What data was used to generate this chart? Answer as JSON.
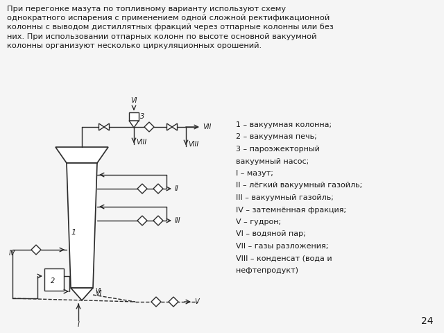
{
  "title_text": "При перегонке мазута по топливному варианту используют схему\nоднократного испарения с применением одной сложной ректификационной\nколонны с выводом дистиллятных фракций через отпарные колонны или без\nних. При использовании отпарных колонн по высоте основной вакуумной\nколонны организуют несколько циркуляционных орошений.",
  "legend_lines": [
    "1 – вакуумная колонна;",
    "2 – вакуумная печь;",
    "3 – пароэжекторный",
    "вакуумный насос;",
    "I – мазут;",
    "II – лёгкий вакуумный газойль;",
    "III – вакуумный газойль;",
    "IV – затемнённая фракция;",
    "V – гудрон;",
    "VI – водяной пар;",
    "VII – газы разложения;",
    "VIII – конденсат (вода и",
    "нефтепродукт)"
  ],
  "page_number": "24",
  "bg_color": "#f5f5f5",
  "line_color": "#2a2a2a",
  "text_color": "#1a1a1a"
}
